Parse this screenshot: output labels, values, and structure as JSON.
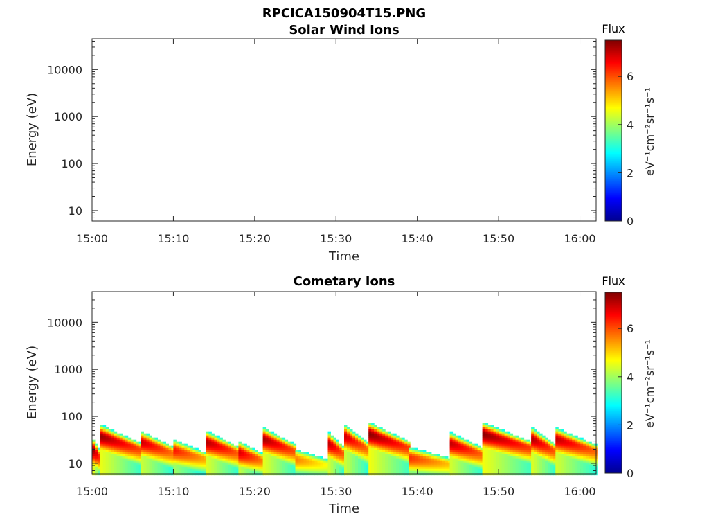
{
  "figure_title": "RPCICA150904T15.PNG",
  "chart_data": [
    {
      "type": "heatmap",
      "title": "Solar Wind Ions",
      "xlabel": "Time",
      "ylabel": "Energy (eV)",
      "xlim": [
        "15:00",
        "16:02"
      ],
      "x_ticks": [
        "15:00",
        "15:10",
        "15:20",
        "15:30",
        "15:40",
        "15:50",
        "16:00"
      ],
      "y_scale": "log",
      "ylim": [
        6,
        45000
      ],
      "y_ticks": [
        10,
        100,
        1000,
        10000
      ],
      "y_tick_labels": [
        "10",
        "100",
        "1000",
        "10000"
      ],
      "colorbar": {
        "title": "Flux",
        "label": "eV⁻¹cm⁻²sr⁻¹s⁻¹",
        "range": [
          0,
          7.5
        ],
        "ticks": [
          "0",
          "2",
          "4",
          "6"
        ],
        "colormap": "jet"
      },
      "bursts": []
    },
    {
      "type": "heatmap",
      "title": "Cometary Ions",
      "xlabel": "Time",
      "ylabel": "Energy (eV)",
      "xlim": [
        "15:00",
        "16:02"
      ],
      "x_ticks": [
        "15:00",
        "15:10",
        "15:20",
        "15:30",
        "15:40",
        "15:50",
        "16:00"
      ],
      "y_scale": "log",
      "ylim": [
        6,
        45000
      ],
      "y_ticks": [
        10,
        100,
        1000,
        10000
      ],
      "y_tick_labels": [
        "10",
        "100",
        "1000",
        "10000"
      ],
      "colorbar": {
        "title": "Flux",
        "label": "eV⁻¹cm⁻²sr⁻¹s⁻¹",
        "range": [
          0,
          7.5
        ],
        "ticks": [
          "0",
          "2",
          "4",
          "6"
        ],
        "colormap": "jet"
      },
      "bursts": [
        {
          "start": "15:00",
          "end": "15:01",
          "peak_energy_eV": 20,
          "peak_flux": 7.2
        },
        {
          "start": "15:01",
          "end": "15:06",
          "peak_energy_eV": 40,
          "peak_flux": 7.3
        },
        {
          "start": "15:06",
          "end": "15:10",
          "peak_energy_eV": 30,
          "peak_flux": 6.9
        },
        {
          "start": "15:10",
          "end": "15:14",
          "peak_energy_eV": 20,
          "peak_flux": 6.4
        },
        {
          "start": "15:14",
          "end": "15:18",
          "peak_energy_eV": 30,
          "peak_flux": 7.1
        },
        {
          "start": "15:18",
          "end": "15:21",
          "peak_energy_eV": 18,
          "peak_flux": 6.8
        },
        {
          "start": "15:21",
          "end": "15:25",
          "peak_energy_eV": 35,
          "peak_flux": 7.2
        },
        {
          "start": "15:25",
          "end": "15:29",
          "peak_energy_eV": 13,
          "peak_flux": 5.6
        },
        {
          "start": "15:29",
          "end": "15:31",
          "peak_energy_eV": 28,
          "peak_flux": 7.0
        },
        {
          "start": "15:31",
          "end": "15:34",
          "peak_energy_eV": 40,
          "peak_flux": 6.9
        },
        {
          "start": "15:34",
          "end": "15:39",
          "peak_energy_eV": 45,
          "peak_flux": 7.4
        },
        {
          "start": "15:39",
          "end": "15:44",
          "peak_energy_eV": 14,
          "peak_flux": 6.2
        },
        {
          "start": "15:44",
          "end": "15:48",
          "peak_energy_eV": 28,
          "peak_flux": 7.0
        },
        {
          "start": "15:48",
          "end": "15:54",
          "peak_energy_eV": 45,
          "peak_flux": 7.4
        },
        {
          "start": "15:54",
          "end": "15:57",
          "peak_energy_eV": 35,
          "peak_flux": 7.1
        },
        {
          "start": "15:57",
          "end": "16:02",
          "peak_energy_eV": 35,
          "peak_flux": 7.0
        }
      ]
    }
  ]
}
